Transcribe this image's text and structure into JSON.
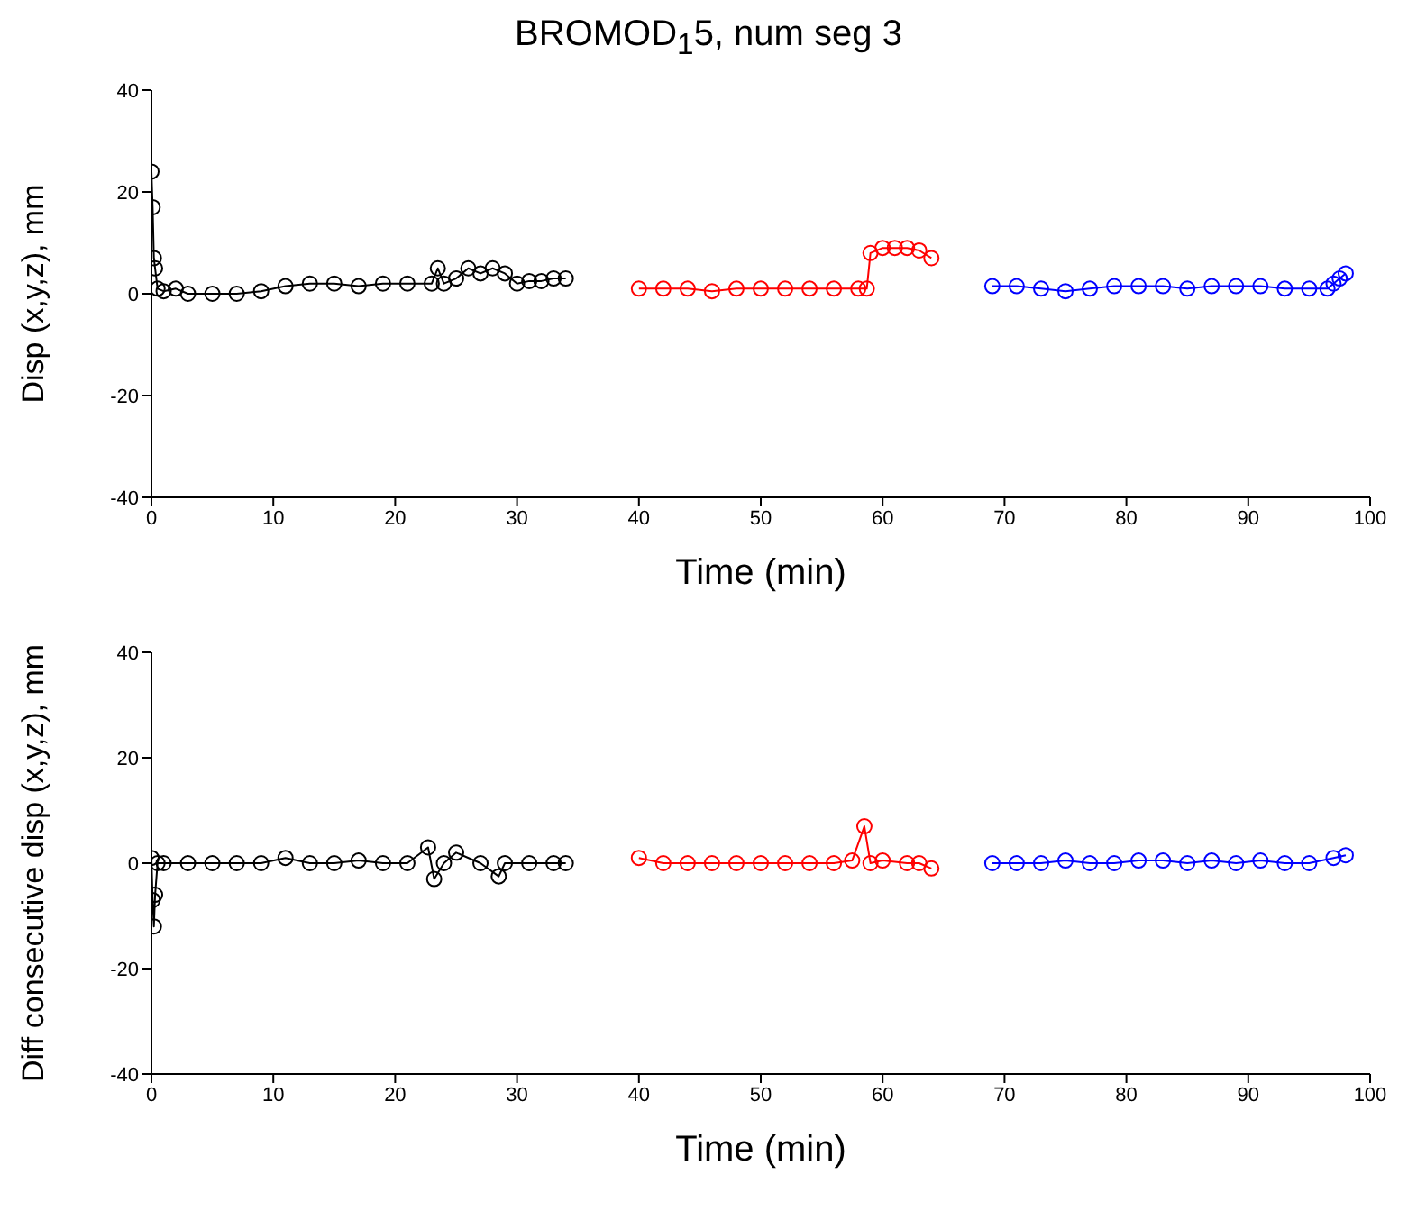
{
  "chart_data": [
    {
      "type": "line",
      "title": "BROMOD$_{1}$5, num seg 3",
      "xlabel": "Time (min)",
      "ylabel": "Disp (x,y,z), mm",
      "xlim": [
        0,
        100
      ],
      "xticks": [
        0,
        10,
        20,
        30,
        40,
        50,
        60,
        70,
        80,
        90,
        100
      ],
      "ylim": [
        -40,
        40
      ],
      "yticks": [
        -40,
        -20,
        0,
        20,
        40
      ],
      "grid": false,
      "marker": "circle",
      "line_style": "solid",
      "series": [
        {
          "color": "#000000",
          "x": [
            0,
            0.1,
            0.2,
            0.3,
            0.5,
            1,
            2,
            3,
            5,
            7,
            9,
            11,
            13,
            15,
            17,
            19,
            21,
            23,
            23.5,
            24,
            25,
            26,
            27,
            28,
            29,
            30,
            31,
            32,
            33,
            34
          ],
          "values": [
            24,
            17,
            7,
            5,
            1,
            0.5,
            1,
            0,
            0,
            0,
            0.5,
            1.5,
            2,
            2,
            1.5,
            2,
            2,
            2,
            5,
            2,
            3,
            5,
            4,
            5,
            4,
            2,
            2.5,
            2.5,
            3,
            3
          ]
        },
        {
          "color": "#ff0000",
          "x": [
            40,
            42,
            44,
            46,
            48,
            50,
            52,
            54,
            56,
            58,
            58.7,
            59,
            60,
            61,
            62,
            63,
            64
          ],
          "values": [
            1,
            1,
            1,
            0.5,
            1,
            1,
            1,
            1,
            1,
            1,
            1,
            8,
            9,
            9,
            9,
            8.5,
            7
          ]
        },
        {
          "color": "#0000ff",
          "x": [
            69,
            71,
            73,
            75,
            77,
            79,
            81,
            83,
            85,
            87,
            89,
            91,
            93,
            95,
            96.5,
            97,
            97.5,
            98
          ],
          "values": [
            1.5,
            1.5,
            1,
            0.5,
            1,
            1.5,
            1.5,
            1.5,
            1,
            1.5,
            1.5,
            1.5,
            1,
            1,
            1,
            2,
            3,
            4
          ]
        }
      ]
    },
    {
      "type": "line",
      "xlabel": "Time (min)",
      "ylabel": "Diff consecutive disp (x,y,z), mm",
      "xlim": [
        0,
        100
      ],
      "xticks": [
        0,
        10,
        20,
        30,
        40,
        50,
        60,
        70,
        80,
        90,
        100
      ],
      "ylim": [
        -40,
        40
      ],
      "yticks": [
        -40,
        -20,
        0,
        20,
        40
      ],
      "grid": false,
      "marker": "circle",
      "line_style": "solid",
      "series": [
        {
          "color": "#000000",
          "x": [
            0,
            0.1,
            0.2,
            0.3,
            0.5,
            1,
            3,
            5,
            7,
            9,
            11,
            13,
            15,
            17,
            19,
            21,
            22.7,
            23.2,
            24,
            25,
            27,
            28.5,
            29,
            31,
            33,
            34
          ],
          "values": [
            1,
            -7,
            -12,
            -6,
            0,
            0,
            0,
            0,
            0,
            0,
            1,
            0,
            0,
            0.5,
            0,
            0,
            3,
            -3,
            0,
            2,
            0,
            -2.5,
            0,
            0,
            0,
            0
          ]
        },
        {
          "color": "#ff0000",
          "x": [
            40,
            42,
            44,
            46,
            48,
            50,
            52,
            54,
            56,
            57.5,
            58.5,
            59,
            60,
            62,
            63,
            64
          ],
          "values": [
            1,
            0,
            0,
            0,
            0,
            0,
            0,
            0,
            0,
            0.5,
            7,
            0,
            0.5,
            0,
            0,
            -1
          ]
        },
        {
          "color": "#0000ff",
          "x": [
            69,
            71,
            73,
            75,
            77,
            79,
            81,
            83,
            85,
            87,
            89,
            91,
            93,
            95,
            97,
            98
          ],
          "values": [
            0,
            0,
            0,
            0.5,
            0,
            0,
            0.5,
            0.5,
            0,
            0.5,
            0,
            0.5,
            0,
            0,
            1,
            1.5
          ]
        }
      ]
    }
  ]
}
